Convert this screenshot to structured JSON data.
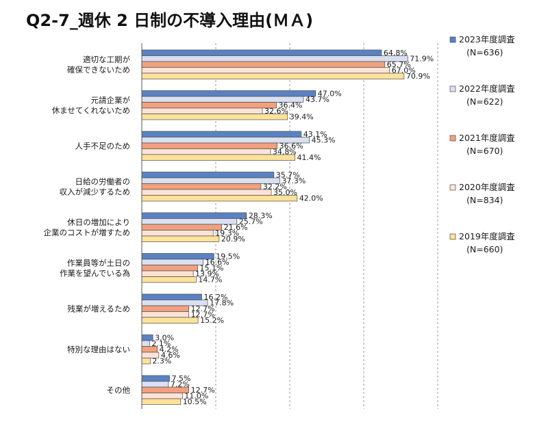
{
  "chart_data": {
    "type": "bar",
    "orientation": "horizontal",
    "title": "Q2-7_週休 2 日制の不導入理由(ＭＡ)",
    "xlim": [
      0,
      100
    ],
    "grid": true,
    "legend_position": "right",
    "categories": [
      [
        "適切な工期が",
        "確保できないため"
      ],
      [
        "元請企業が",
        "休ませてくれないため"
      ],
      [
        "人手不足のため"
      ],
      [
        "日給の労働者の",
        "収入が減少するため"
      ],
      [
        "休日の増加により",
        "企業のコストが増すため"
      ],
      [
        "作業員等が土日の",
        "作業を望んでいる為"
      ],
      [
        "残業が増えるため"
      ],
      [
        "特別な理由はない"
      ],
      [
        "その他"
      ]
    ],
    "series": [
      {
        "name": "2023年度調査",
        "n": "(N=636)",
        "color": "#5a82c3",
        "values": [
          64.8,
          47.0,
          43.1,
          35.7,
          28.3,
          19.5,
          16.2,
          3.0,
          7.5
        ]
      },
      {
        "name": "2022年度調査",
        "n": "(N=622)",
        "color": "#d9e0f1",
        "values": [
          71.9,
          43.7,
          45.3,
          37.3,
          25.7,
          16.6,
          17.8,
          2.1,
          7.2
        ]
      },
      {
        "name": "2021年度調査",
        "n": "(N=670)",
        "color": "#f2a07e",
        "values": [
          65.7,
          36.4,
          36.6,
          32.2,
          21.6,
          15.1,
          12.7,
          4.2,
          12.7
        ]
      },
      {
        "name": "2020年度調査",
        "n": "(N=834)",
        "color": "#fde3d7",
        "values": [
          67.0,
          32.6,
          34.8,
          35.0,
          19.3,
          13.9,
          12.7,
          4.6,
          11.0
        ]
      },
      {
        "name": "2019年度調査",
        "n": "(N=660)",
        "color": "#fde29a",
        "values": [
          70.9,
          39.4,
          41.4,
          42.0,
          20.9,
          14.7,
          15.2,
          2.3,
          10.5
        ]
      }
    ]
  }
}
